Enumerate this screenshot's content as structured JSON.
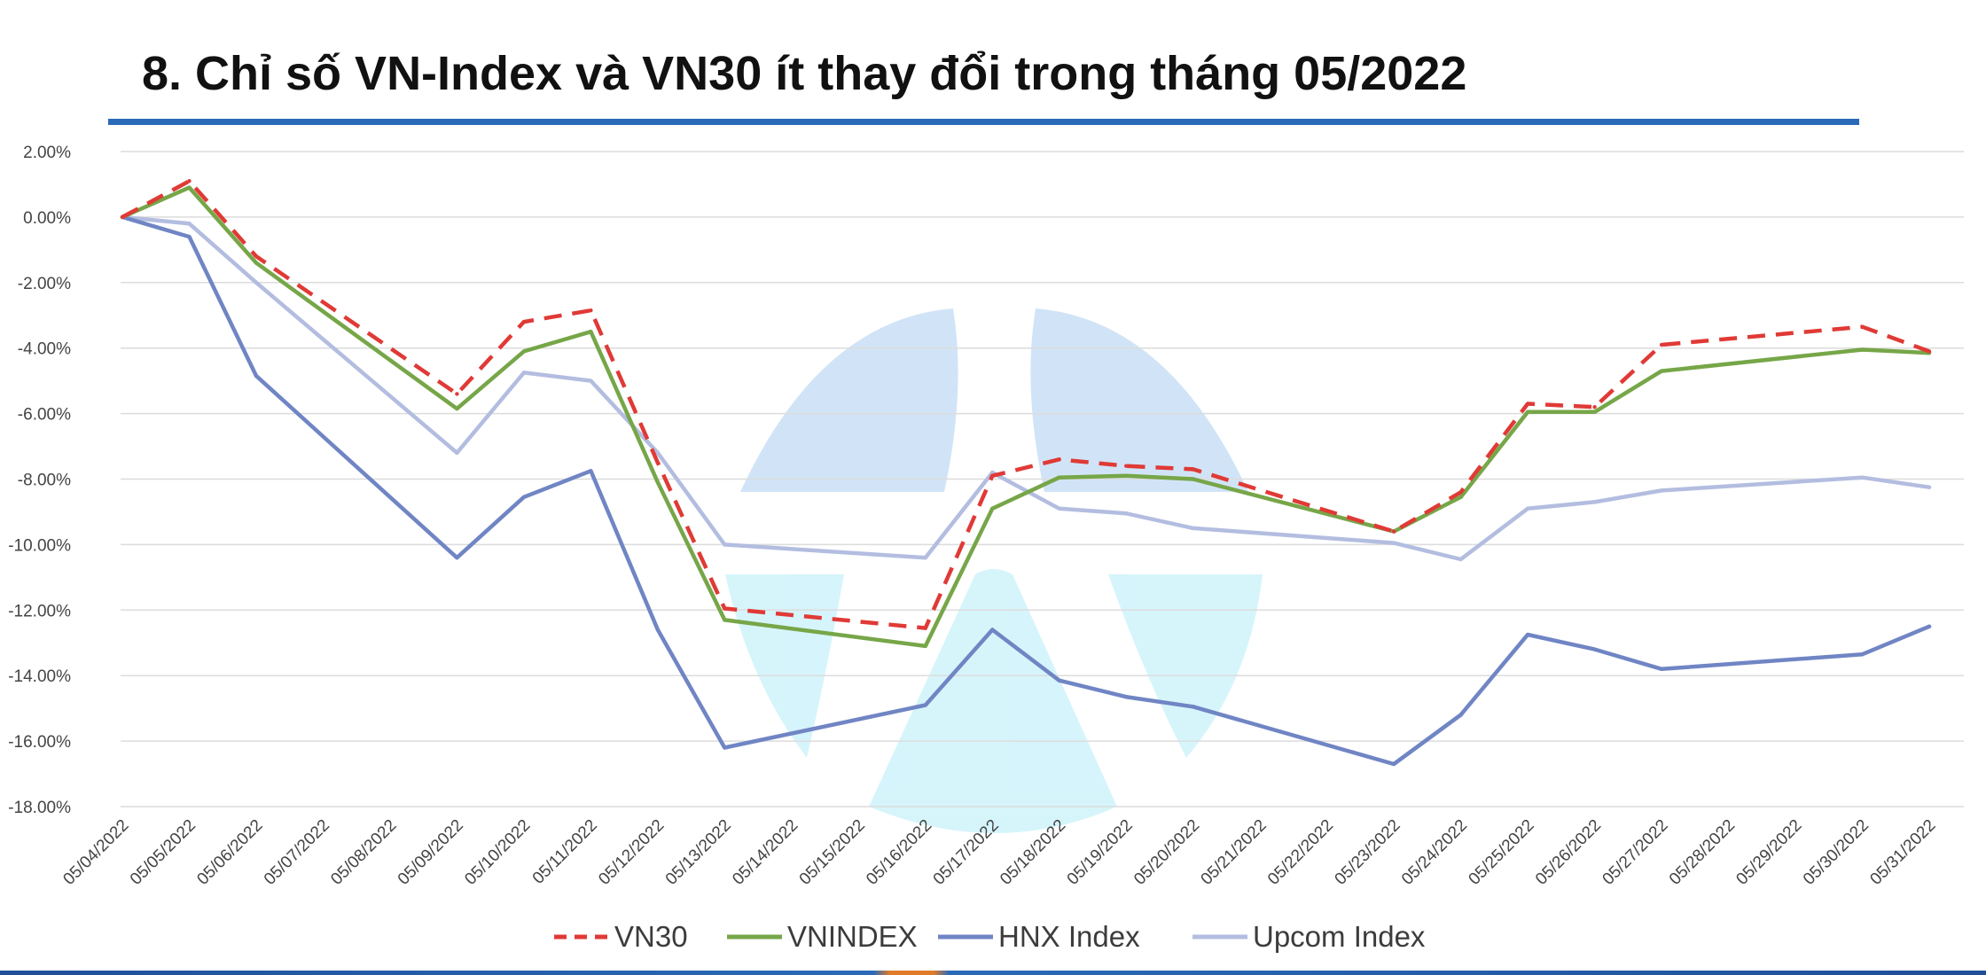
{
  "slide": {
    "title": "8. Chỉ số VN-Index và VN30 ít thay đổi trong tháng 05/2022"
  },
  "chart_data": {
    "type": "line",
    "title": "8. Chỉ số VN-Index và VN30 ít thay đổi trong tháng 05/2022",
    "xlabel": "",
    "ylabel": "",
    "ylim": [
      -18,
      2
    ],
    "yticks": [
      2,
      0,
      -2,
      -4,
      -6,
      -8,
      -10,
      -12,
      -14,
      -16,
      -18
    ],
    "ytick_labels": [
      "2.00%",
      "0.00%",
      "-2.00%",
      "-4.00%",
      "-6.00%",
      "-8.00%",
      "-10.00%",
      "-12.00%",
      "-14.00%",
      "-16.00%",
      "-18.00%"
    ],
    "grid": true,
    "legend_position": "bottom",
    "categories": [
      "05/04/2022",
      "05/05/2022",
      "05/06/2022",
      "05/07/2022",
      "05/08/2022",
      "05/09/2022",
      "05/10/2022",
      "05/11/2022",
      "05/12/2022",
      "05/13/2022",
      "05/14/2022",
      "05/15/2022",
      "05/16/2022",
      "05/17/2022",
      "05/18/2022",
      "05/19/2022",
      "05/20/2022",
      "05/21/2022",
      "05/22/2022",
      "05/23/2022",
      "05/24/2022",
      "05/25/2022",
      "05/26/2022",
      "05/27/2022",
      "05/28/2022",
      "05/29/2022",
      "05/30/2022",
      "05/31/2022"
    ],
    "series": [
      {
        "name": "VN30",
        "color": "#e03a36",
        "dash": true,
        "points": [
          [
            0,
            0
          ],
          [
            1,
            1.1
          ],
          [
            2,
            -1.2
          ],
          [
            5,
            -5.4
          ],
          [
            6,
            -3.2
          ],
          [
            7,
            -2.85
          ],
          [
            8,
            -7.5
          ],
          [
            9,
            -11.95
          ],
          [
            12,
            -12.55
          ],
          [
            13,
            -7.9
          ],
          [
            14,
            -7.4
          ],
          [
            15,
            -7.6
          ],
          [
            16,
            -7.7
          ],
          [
            19,
            -9.6
          ],
          [
            20,
            -8.4
          ],
          [
            21,
            -5.7
          ],
          [
            22,
            -5.8
          ],
          [
            23,
            -3.9
          ],
          [
            26,
            -3.35
          ],
          [
            27,
            -4.1
          ]
        ]
      },
      {
        "name": "VNINDEX",
        "color": "#76a648",
        "dash": false,
        "points": [
          [
            0,
            0
          ],
          [
            1,
            0.9
          ],
          [
            2,
            -1.4
          ],
          [
            5,
            -5.85
          ],
          [
            6,
            -4.1
          ],
          [
            7,
            -3.5
          ],
          [
            8,
            -8.1
          ],
          [
            9,
            -12.3
          ],
          [
            12,
            -13.1
          ],
          [
            13,
            -8.9
          ],
          [
            14,
            -7.95
          ],
          [
            15,
            -7.9
          ],
          [
            16,
            -8.0
          ],
          [
            19,
            -9.6
          ],
          [
            20,
            -8.55
          ],
          [
            21,
            -5.95
          ],
          [
            22,
            -5.95
          ],
          [
            23,
            -4.7
          ],
          [
            26,
            -4.05
          ],
          [
            27,
            -4.15
          ]
        ]
      },
      {
        "name": "HNX Index",
        "color": "#7085c4",
        "dash": false,
        "points": [
          [
            0,
            0
          ],
          [
            1,
            -0.6
          ],
          [
            2,
            -4.85
          ],
          [
            5,
            -10.4
          ],
          [
            6,
            -8.55
          ],
          [
            7,
            -7.75
          ],
          [
            8,
            -12.6
          ],
          [
            9,
            -16.2
          ],
          [
            12,
            -14.9
          ],
          [
            13,
            -12.6
          ],
          [
            14,
            -14.15
          ],
          [
            15,
            -14.65
          ],
          [
            16,
            -14.95
          ],
          [
            19,
            -16.7
          ],
          [
            20,
            -15.2
          ],
          [
            21,
            -12.75
          ],
          [
            22,
            -13.2
          ],
          [
            23,
            -13.8
          ],
          [
            26,
            -13.35
          ],
          [
            27,
            -12.5
          ]
        ]
      },
      {
        "name": "Upcom Index",
        "color": "#b3bde0",
        "dash": false,
        "points": [
          [
            0,
            0
          ],
          [
            1,
            -0.2
          ],
          [
            2,
            -2.0
          ],
          [
            5,
            -7.2
          ],
          [
            6,
            -4.75
          ],
          [
            7,
            -5.0
          ],
          [
            8,
            -7.2
          ],
          [
            9,
            -10.0
          ],
          [
            12,
            -10.4
          ],
          [
            13,
            -7.8
          ],
          [
            14,
            -8.9
          ],
          [
            15,
            -9.05
          ],
          [
            16,
            -9.5
          ],
          [
            19,
            -9.95
          ],
          [
            20,
            -10.45
          ],
          [
            21,
            -8.9
          ],
          [
            22,
            -8.7
          ],
          [
            23,
            -8.35
          ],
          [
            26,
            -7.95
          ],
          [
            27,
            -8.25
          ]
        ]
      }
    ]
  }
}
